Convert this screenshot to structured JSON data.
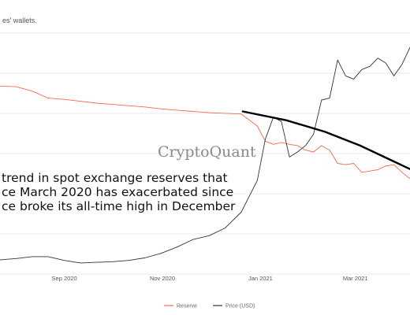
{
  "header": {
    "title": "es' wallets."
  },
  "chart_data": {
    "type": "line",
    "title": "es' wallets.",
    "xlabel": "",
    "ylabel": "",
    "grid": true,
    "legend_placement": "bottom-center",
    "x_ticks": [
      "Sep 2020",
      "Nov 2020",
      "Jan 2021",
      "Mar 2021"
    ],
    "x": [
      "2020-07-23",
      "2020-08-02",
      "2020-08-12",
      "2020-08-22",
      "2020-09-01",
      "2020-09-11",
      "2020-09-21",
      "2020-10-01",
      "2020-10-11",
      "2020-10-21",
      "2020-10-31",
      "2020-11-10",
      "2020-11-20",
      "2020-11-30",
      "2020-12-10",
      "2020-12-20",
      "2020-12-30",
      "2021-01-04",
      "2021-01-09",
      "2021-01-14",
      "2021-01-19",
      "2021-01-24",
      "2021-01-29",
      "2021-02-03",
      "2021-02-08",
      "2021-02-13",
      "2021-02-18",
      "2021-02-23",
      "2021-02-28",
      "2021-03-05",
      "2021-03-10",
      "2021-03-15",
      "2021-03-20",
      "2021-03-25",
      "2021-03-30",
      "2021-04-04"
    ],
    "series": [
      {
        "name": "Reserve",
        "color": "#f26b50",
        "values": [
          2.94,
          2.93,
          2.86,
          2.75,
          2.73,
          2.7,
          2.67,
          2.65,
          2.63,
          2.61,
          2.58,
          2.56,
          2.54,
          2.52,
          2.51,
          2.5,
          2.31,
          2.07,
          2.02,
          2.05,
          2.02,
          2.0,
          1.93,
          1.9,
          2.0,
          1.93,
          1.72,
          1.7,
          1.72,
          1.58,
          1.6,
          1.62,
          1.68,
          1.7,
          1.58,
          1.48
        ]
      },
      {
        "name": "Price (USD)",
        "color": "#333333",
        "values": [
          0.2,
          0.22,
          0.25,
          0.25,
          0.19,
          0.15,
          0.16,
          0.17,
          0.19,
          0.23,
          0.3,
          0.4,
          0.52,
          0.58,
          0.7,
          0.95,
          1.45,
          2.1,
          2.45,
          2.38,
          1.82,
          1.9,
          2.0,
          2.18,
          2.72,
          2.75,
          3.35,
          3.1,
          3.05,
          3.2,
          3.25,
          3.38,
          3.3,
          3.1,
          3.28,
          3.55
        ]
      }
    ],
    "trend_line": {
      "x": [
        "2020-12-21",
        "2021-01-17",
        "2021-02-10",
        "2021-03-04",
        "2021-04-04"
      ],
      "values": [
        2.54,
        2.4,
        2.22,
        2.0,
        1.63
      ]
    },
    "watermark": "CryptoQuant",
    "annotation_lines": [
      "trend in spot exchange reserves that",
      "ce March 2020 has exacerbated since",
      "ce broke its all-time high in December"
    ]
  }
}
